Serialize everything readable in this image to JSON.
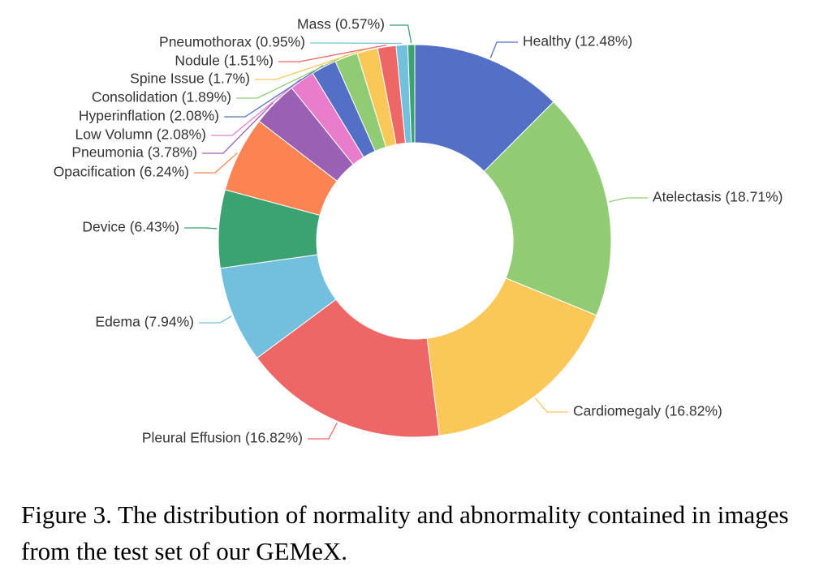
{
  "chart_data": {
    "type": "pie",
    "variant": "donut",
    "title": "",
    "slices": [
      {
        "label": "Healthy",
        "value": 12.48,
        "display": "Healthy (12.48%)",
        "color": "#5470c6"
      },
      {
        "label": "Atelectasis",
        "value": 18.71,
        "display": "Atelectasis (18.71%)",
        "color": "#91cc75"
      },
      {
        "label": "Cardiomegaly",
        "value": 16.82,
        "display": "Cardiomegaly (16.82%)",
        "color": "#fac858"
      },
      {
        "label": "Pleural Effusion",
        "value": 16.82,
        "display": "Pleural Effusion (16.82%)",
        "color": "#ee6666"
      },
      {
        "label": "Edema",
        "value": 7.94,
        "display": "Edema (7.94%)",
        "color": "#73c0de"
      },
      {
        "label": "Device",
        "value": 6.43,
        "display": "Device (6.43%)",
        "color": "#3ba272"
      },
      {
        "label": "Opacification",
        "value": 6.24,
        "display": "Opacification (6.24%)",
        "color": "#fc8452"
      },
      {
        "label": "Pneumonia",
        "value": 3.78,
        "display": "Pneumonia (3.78%)",
        "color": "#9a60b4"
      },
      {
        "label": "Low Volumn",
        "value": 2.08,
        "display": "Low Volumn (2.08%)",
        "color": "#ea7ccc"
      },
      {
        "label": "Hyperinflation",
        "value": 2.08,
        "display": "Hyperinflation (2.08%)",
        "color": "#5470c6"
      },
      {
        "label": "Consolidation",
        "value": 1.89,
        "display": "Consolidation (1.89%)",
        "color": "#91cc75"
      },
      {
        "label": "Spine Issue",
        "value": 1.7,
        "display": "Spine Issue (1.7%)",
        "color": "#fac858"
      },
      {
        "label": "Nodule",
        "value": 1.51,
        "display": "Nodule (1.51%)",
        "color": "#ee6666"
      },
      {
        "label": "Pneumothorax",
        "value": 0.95,
        "display": "Pneumothorax (0.95%)",
        "color": "#73c0de"
      },
      {
        "label": "Mass",
        "value": 0.57,
        "display": "Mass (0.57%)",
        "color": "#3ba272"
      }
    ]
  },
  "caption": "Figure 3. The distribution of normality and abnormality contained in images from the test set of our GEMeX."
}
